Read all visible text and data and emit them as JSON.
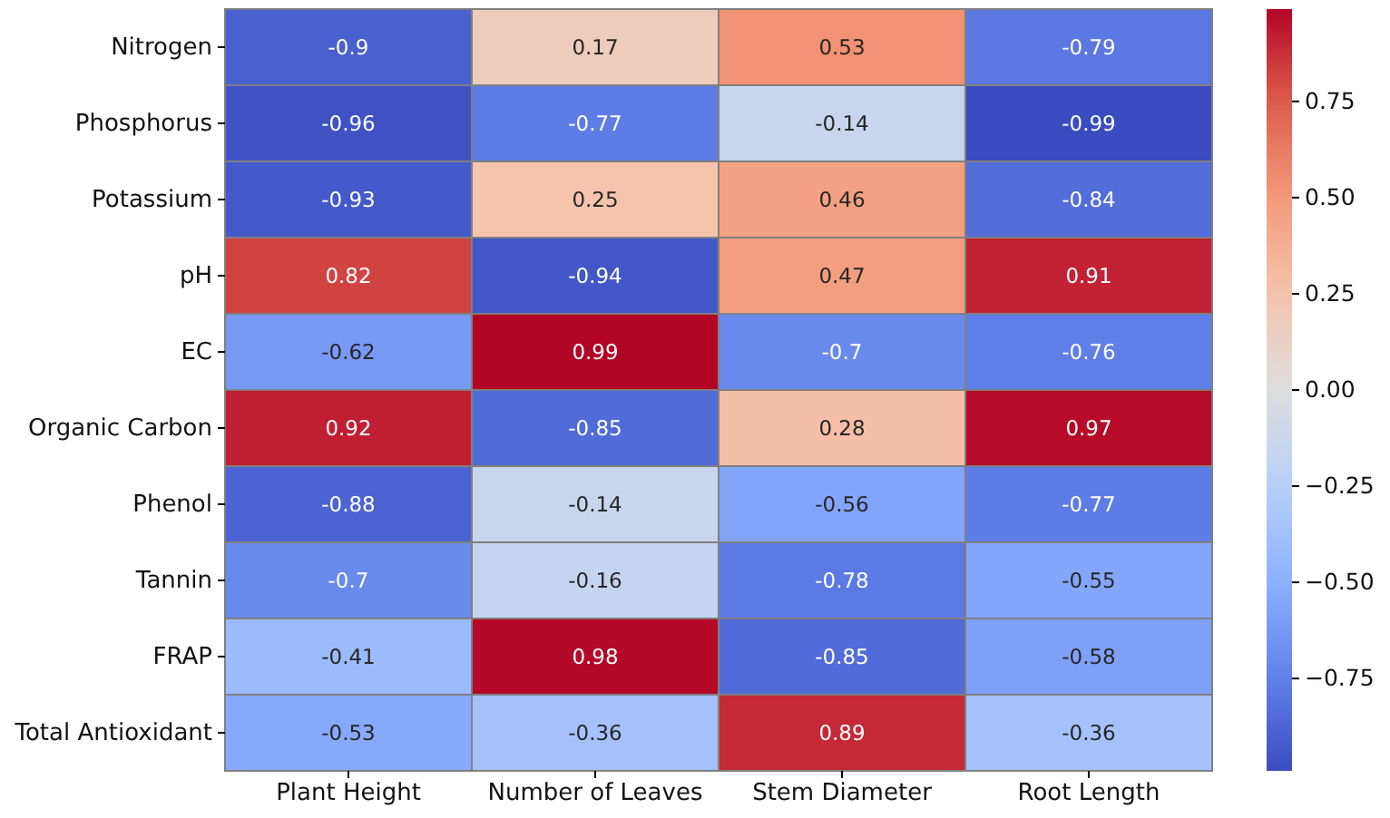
{
  "chart_data": {
    "type": "heatmap",
    "categories": [
      "Plant Height",
      "Number of Leaves",
      "Stem Diameter",
      "Root Length"
    ],
    "y_categories": [
      "Nitrogen",
      "Phosphorus",
      "Potassium",
      "pH",
      "EC",
      "Organic Carbon",
      "Phenol",
      "Tannin",
      "FRAP",
      "Total Antioxidant"
    ],
    "cells": [
      [
        -0.9,
        0.17,
        0.53,
        -0.79
      ],
      [
        -0.96,
        -0.77,
        -0.14,
        -0.99
      ],
      [
        -0.93,
        0.25,
        0.46,
        -0.84
      ],
      [
        0.82,
        -0.94,
        0.47,
        0.91
      ],
      [
        -0.62,
        0.99,
        -0.7,
        -0.76
      ],
      [
        0.92,
        -0.85,
        0.28,
        0.97
      ],
      [
        -0.88,
        -0.14,
        -0.56,
        -0.77
      ],
      [
        -0.7,
        -0.16,
        -0.78,
        -0.55
      ],
      [
        -0.41,
        0.98,
        -0.85,
        -0.58
      ],
      [
        -0.53,
        -0.36,
        0.89,
        -0.36
      ]
    ],
    "data_labels": true,
    "clim": [
      -0.99,
      0.99
    ],
    "cticks": [
      {
        "value": -0.75,
        "label": "−0.75"
      },
      {
        "value": -0.5,
        "label": "−0.50"
      },
      {
        "value": -0.25,
        "label": "−0.25"
      },
      {
        "value": 0,
        "label": "0.00"
      },
      {
        "value": 0.25,
        "label": "0.25"
      },
      {
        "value": 0.5,
        "label": "0.50"
      },
      {
        "value": 0.75,
        "label": "0.75"
      }
    ]
  }
}
